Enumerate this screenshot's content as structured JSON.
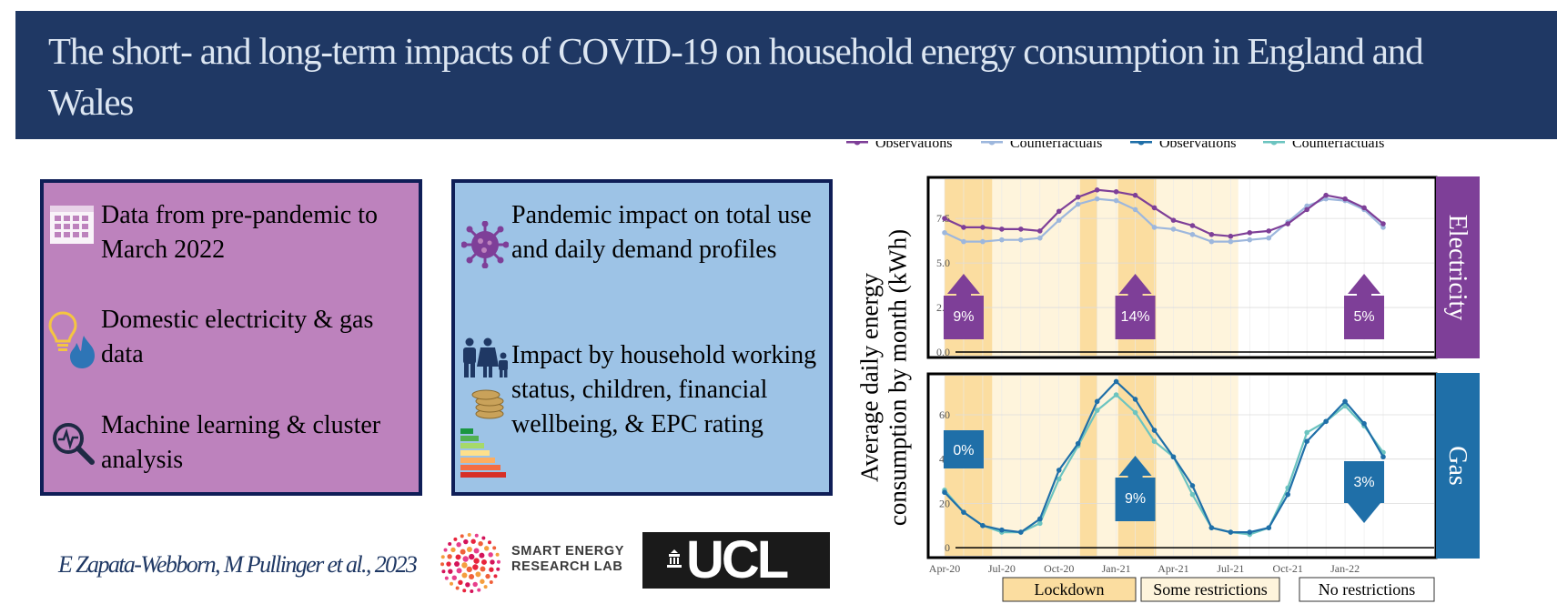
{
  "title": "The short- and long-term impacts of COVID-19 on household energy consumption in England and Wales",
  "left_box": {
    "items": [
      {
        "text": "Data from pre-pandemic to March 2022",
        "icon": "calendar-icon"
      },
      {
        "text": "Domestic electricity & gas data",
        "icon": "lightbulb-flame-icon"
      },
      {
        "text": "Machine learning & cluster analysis",
        "icon": "magnifier-pulse-icon"
      }
    ],
    "color": "#bd82bd"
  },
  "right_box": {
    "items": [
      {
        "text": "Pandemic impact on total use and daily demand profiles",
        "icon": "virus-icon"
      },
      {
        "text": "Impact by household working status, children, financial wellbeing, & EPC rating",
        "icon": "family-coins-epc-icon"
      }
    ],
    "color": "#9dc3e6"
  },
  "authors": "E Zapata-Webborn, M Pullinger et al., 2023",
  "logos": {
    "serl": "SMART ENERGY RESEARCH LAB",
    "ucl": "UCL"
  },
  "chart_data": {
    "type": "line",
    "ylabel": "Average daily energy consumption by month (kWh)",
    "x": [
      "Apr-20",
      "May-20",
      "Jun-20",
      "Jul-20",
      "Aug-20",
      "Sep-20",
      "Oct-20",
      "Nov-20",
      "Dec-20",
      "Jan-21",
      "Feb-21",
      "Mar-21",
      "Apr-21",
      "May-21",
      "Jun-21",
      "Jul-21",
      "Aug-21",
      "Sep-21",
      "Oct-21",
      "Nov-21",
      "Dec-21",
      "Jan-22",
      "Feb-22",
      "Mar-22"
    ],
    "x_ticks": [
      "Apr-20",
      "Jul-20",
      "Oct-20",
      "Jan-21",
      "Apr-21",
      "Jul-21",
      "Oct-21",
      "Jan-22"
    ],
    "legend": [
      {
        "name": "Observations",
        "color": "#7e3f98"
      },
      {
        "name": "Counterfactuals",
        "color": "#9db7dd"
      },
      {
        "name": "Observations",
        "color": "#1f6fa8"
      },
      {
        "name": "Counterfactuals",
        "color": "#6cc4c0"
      }
    ],
    "restriction_legend": [
      {
        "label": "Lockdown",
        "color": "#fbdda0"
      },
      {
        "label": "Some restrictions",
        "color": "#fef4dc"
      },
      {
        "label": "No restrictions",
        "color": "#ffffff"
      }
    ],
    "periods": [
      {
        "start": 0,
        "end": 2.5,
        "type": "Lockdown"
      },
      {
        "start": 2.5,
        "end": 7.1,
        "type": "Some restrictions"
      },
      {
        "start": 7.1,
        "end": 8.0,
        "type": "Lockdown"
      },
      {
        "start": 8.0,
        "end": 9.1,
        "type": "Some restrictions"
      },
      {
        "start": 9.1,
        "end": 11.1,
        "type": "Lockdown"
      },
      {
        "start": 11.1,
        "end": 15.4,
        "type": "Some restrictions"
      }
    ],
    "panels": [
      {
        "name": "Electricity",
        "color": "#7e3f98",
        "ylim": [
          0,
          9.5
        ],
        "yticks": [
          0.0,
          2.5,
          5.0,
          7.5
        ],
        "ytick_labels": [
          "0.0",
          "2.5",
          "5.0",
          "7.5"
        ],
        "series": [
          {
            "name": "Observations",
            "color": "#7e3f98",
            "values": [
              7.5,
              7.0,
              7.0,
              6.9,
              6.9,
              6.8,
              7.9,
              8.7,
              9.1,
              9.0,
              8.8,
              8.1,
              7.4,
              7.1,
              6.6,
              6.5,
              6.7,
              6.8,
              7.2,
              8.0,
              8.8,
              8.6,
              8.1,
              7.2
            ]
          },
          {
            "name": "Counterfactuals",
            "color": "#9db7dd",
            "values": [
              6.7,
              6.2,
              6.2,
              6.3,
              6.3,
              6.4,
              7.4,
              8.3,
              8.6,
              8.5,
              8.0,
              7.0,
              6.9,
              6.6,
              6.2,
              6.2,
              6.3,
              6.4,
              7.3,
              8.2,
              8.6,
              8.5,
              8.0,
              7.0
            ]
          }
        ],
        "annotations": [
          {
            "label": "9%",
            "x": 1,
            "direction": "up"
          },
          {
            "label": "14%",
            "x": 10,
            "direction": "up"
          },
          {
            "label": "5%",
            "x": 22,
            "direction": "up"
          }
        ]
      },
      {
        "name": "Gas",
        "color": "#1f6fa8",
        "ylim": [
          -2,
          76
        ],
        "yticks": [
          0,
          20,
          40,
          60
        ],
        "ytick_labels": [
          "0",
          "20",
          "40",
          "60"
        ],
        "series": [
          {
            "name": "Observations",
            "color": "#1f6fa8",
            "values": [
              25,
              16,
              10,
              8,
              7,
              13,
              35,
              47,
              66,
              75,
              67,
              53,
              41,
              28,
              9,
              7,
              7,
              9,
              24,
              48,
              57,
              66,
              56,
              41
            ]
          },
          {
            "name": "Counterfactuals",
            "color": "#6cc4c0",
            "values": [
              26,
              16,
              10,
              7,
              7,
              11,
              31,
              46,
              62,
              69,
              61,
              48,
              41,
              24,
              9,
              7,
              6,
              9,
              27,
              52,
              57,
              64,
              55,
              43
            ]
          }
        ],
        "annotations": [
          {
            "label": "0%",
            "x": 1,
            "direction": "none"
          },
          {
            "label": "9%",
            "x": 10,
            "direction": "up"
          },
          {
            "label": "3%",
            "x": 22,
            "direction": "down"
          }
        ]
      }
    ]
  }
}
